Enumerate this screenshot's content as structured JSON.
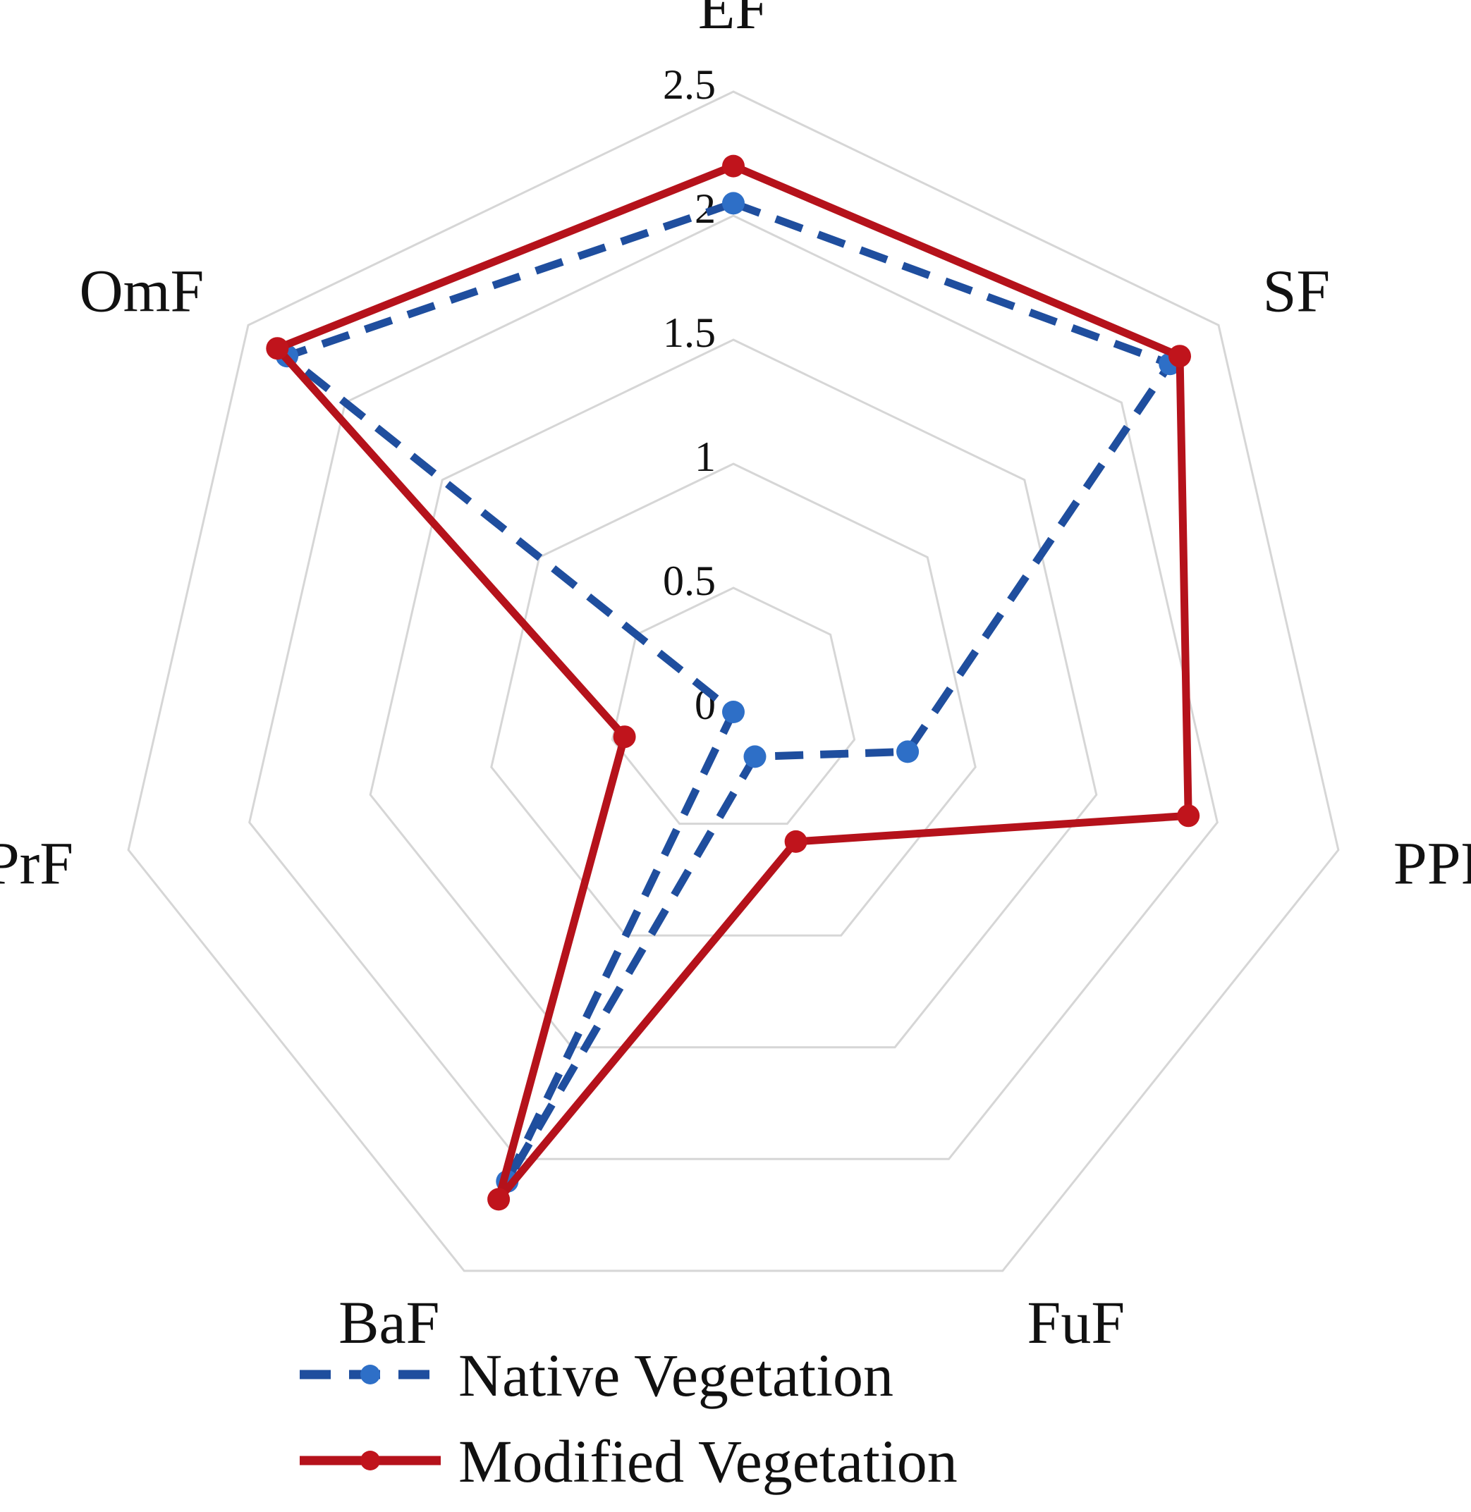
{
  "chart_data": {
    "type": "radar",
    "title": "",
    "categories": [
      "EF",
      "SF",
      "PPF",
      "FuF",
      "BaF",
      "PrF",
      "OmF"
    ],
    "range": [
      0,
      2.5
    ],
    "ticks": [
      "0",
      "0.5",
      "1",
      "1.5",
      "2",
      "2.5"
    ],
    "tick_values": [
      0,
      0.5,
      1,
      1.5,
      2,
      2.5
    ],
    "grid": true,
    "legend_position": "bottom",
    "series": [
      {
        "name": "Native Vegetation",
        "values": [
          2.05,
          2.25,
          0.72,
          0.2,
          2.1,
          0.0,
          2.3
        ],
        "color": "#1f4e9e",
        "marker_color": "#2e6fc7",
        "line_style": "dashed"
      },
      {
        "name": "Modified Vegetation",
        "values": [
          2.2,
          2.3,
          1.88,
          0.58,
          2.18,
          0.45,
          2.35
        ],
        "color": "#b5121b",
        "marker_color": "#c0141c",
        "line_style": "solid"
      }
    ]
  }
}
